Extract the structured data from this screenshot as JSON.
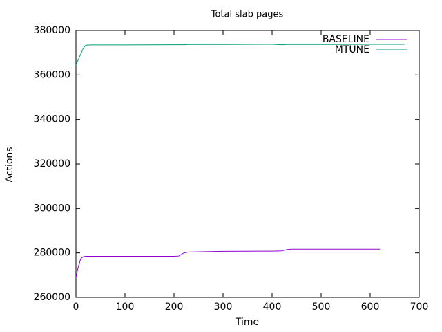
{
  "chart_data": {
    "type": "line",
    "title": "Total slab pages",
    "x_label": "Time",
    "y_label": "Actions",
    "x": [
      0,
      5,
      10,
      15,
      20,
      30,
      100,
      200,
      210,
      220,
      230,
      300,
      400,
      420,
      430,
      440,
      500,
      620,
      670
    ],
    "series": [
      {
        "name": "BASELINE",
        "color": "#9400d3",
        "values": [
          269000,
          274000,
          277500,
          278300,
          278500,
          278500,
          278500,
          278500,
          278600,
          280000,
          280400,
          280700,
          280800,
          280900,
          281500,
          281700,
          281700,
          281700,
          null
        ]
      },
      {
        "name": "MTUNE",
        "color": "#009e73",
        "values": [
          364500,
          367000,
          369500,
          372000,
          373400,
          373500,
          373500,
          373600,
          373600,
          373600,
          373700,
          373700,
          373800,
          373600,
          373700,
          373700,
          373700,
          373800,
          373800
        ]
      }
    ],
    "xlim": [
      0,
      700
    ],
    "xticks": [
      0,
      100,
      200,
      300,
      400,
      500,
      600,
      700
    ],
    "ylim": [
      260000,
      380000
    ],
    "yticks": [
      260000,
      280000,
      300000,
      320000,
      340000,
      360000,
      380000
    ],
    "grid": false,
    "legend": "top-right"
  }
}
